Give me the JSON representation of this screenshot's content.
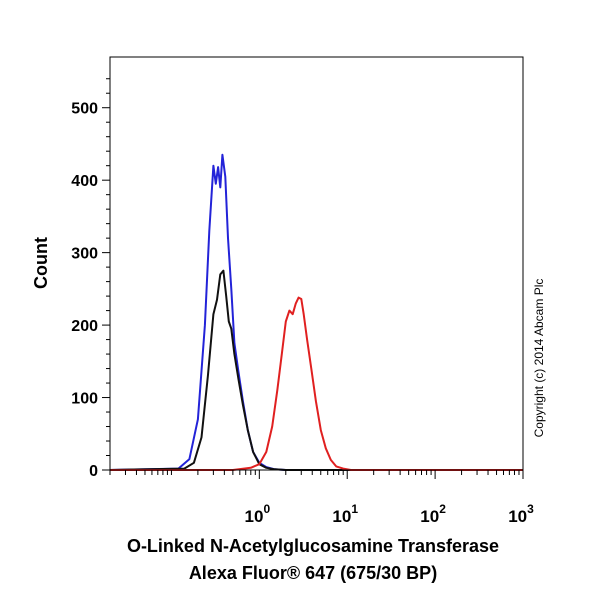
{
  "chart_data": {
    "type": "line",
    "title": "",
    "xlabel_line1": "O-Linked N-Acetylglucosamine Transferase",
    "xlabel_line2": "Alexa Fluor® 647 (675/30 BP)",
    "ylabel": "Count",
    "xscale": "log",
    "xlim": [
      0.02,
      1000
    ],
    "ylim": [
      0,
      570
    ],
    "x_ticks": [
      {
        "base": "10",
        "exp": "0",
        "value": 1
      },
      {
        "base": "10",
        "exp": "1",
        "value": 10
      },
      {
        "base": "10",
        "exp": "2",
        "value": 100
      },
      {
        "base": "10",
        "exp": "3",
        "value": 1000
      }
    ],
    "y_ticks": [
      0,
      100,
      200,
      300,
      400,
      500
    ],
    "grid": false,
    "legend": "none",
    "copyright": "Copyright (c) 2014 Abcam Plc",
    "series": [
      {
        "color": "#2323d8",
        "x": [
          0.02,
          0.12,
          0.16,
          0.2,
          0.24,
          0.27,
          0.3,
          0.32,
          0.34,
          0.36,
          0.38,
          0.41,
          0.44,
          0.48,
          0.52,
          0.58,
          0.65,
          0.74,
          0.85,
          1.0,
          1.2,
          1.5,
          2.0,
          10,
          1000
        ],
        "y": [
          0,
          2,
          15,
          70,
          200,
          330,
          420,
          395,
          418,
          390,
          435,
          405,
          320,
          250,
          175,
          135,
          95,
          55,
          25,
          10,
          4,
          1,
          0,
          0,
          0
        ]
      },
      {
        "color": "#111111",
        "x": [
          0.02,
          0.14,
          0.18,
          0.22,
          0.26,
          0.3,
          0.33,
          0.36,
          0.39,
          0.42,
          0.45,
          0.48,
          0.52,
          0.58,
          0.65,
          0.74,
          0.85,
          1.0,
          1.2,
          1.5,
          2.0,
          10,
          1000
        ],
        "y": [
          0,
          2,
          10,
          45,
          130,
          215,
          235,
          270,
          275,
          240,
          205,
          195,
          160,
          125,
          90,
          55,
          25,
          8,
          3,
          1,
          0,
          0,
          0
        ]
      },
      {
        "color": "#e02020",
        "x": [
          0.02,
          0.5,
          0.8,
          1.0,
          1.2,
          1.4,
          1.6,
          1.8,
          2.0,
          2.2,
          2.4,
          2.6,
          2.8,
          3.0,
          3.2,
          3.5,
          3.9,
          4.4,
          5.0,
          5.7,
          6.5,
          7.5,
          9.0,
          11,
          15,
          1000
        ],
        "y": [
          0,
          0,
          3,
          8,
          25,
          60,
          110,
          160,
          205,
          220,
          215,
          230,
          238,
          236,
          215,
          180,
          140,
          95,
          55,
          30,
          14,
          5,
          2,
          0,
          0,
          0
        ]
      }
    ]
  }
}
